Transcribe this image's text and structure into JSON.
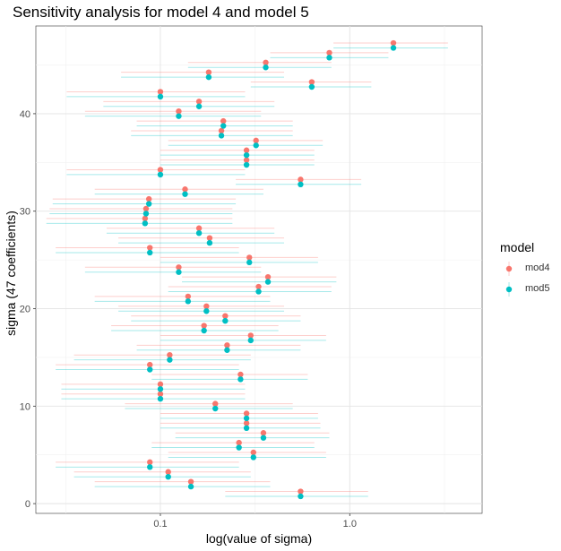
{
  "chart_data": {
    "type": "scatter",
    "title": "Sensitivity analysis for model 4 and model 5",
    "xlabel": "log(value of sigma)",
    "ylabel": "sigma (47 coefficients)",
    "x_scale": "log10",
    "xlim": [
      0.022,
      5
    ],
    "ylim": [
      -1,
      49
    ],
    "x_ticks": [
      0.1,
      1.0
    ],
    "x_tick_labels": [
      "0.1",
      "1.0"
    ],
    "y_ticks": [
      0,
      10,
      20,
      30,
      40
    ],
    "y_tick_labels": [
      "0",
      "10",
      "20",
      "30",
      "40"
    ],
    "grid": true,
    "legend": {
      "title": "model",
      "position": "right"
    },
    "colors": {
      "mod4": "#F8766D",
      "mod5": "#00BFC4"
    },
    "series": [
      {
        "name": "mod4",
        "points": [
          {
            "sigma": 1,
            "estimate": 0.55,
            "lower": 0.22,
            "upper": 1.25
          },
          {
            "sigma": 2,
            "estimate": 0.145,
            "lower": 0.045,
            "upper": 0.38
          },
          {
            "sigma": 3,
            "estimate": 0.11,
            "lower": 0.035,
            "upper": 0.3
          },
          {
            "sigma": 4,
            "estimate": 0.088,
            "lower": 0.028,
            "upper": 0.26
          },
          {
            "sigma": 5,
            "estimate": 0.31,
            "lower": 0.11,
            "upper": 0.75
          },
          {
            "sigma": 6,
            "estimate": 0.26,
            "lower": 0.09,
            "upper": 0.65
          },
          {
            "sigma": 7,
            "estimate": 0.35,
            "lower": 0.12,
            "upper": 0.78
          },
          {
            "sigma": 8,
            "estimate": 0.285,
            "lower": 0.1,
            "upper": 0.7
          },
          {
            "sigma": 9,
            "estimate": 0.285,
            "lower": 0.1,
            "upper": 0.68
          },
          {
            "sigma": 10,
            "estimate": 0.195,
            "lower": 0.065,
            "upper": 0.5
          },
          {
            "sigma": 11,
            "estimate": 0.1,
            "lower": 0.03,
            "upper": 0.28
          },
          {
            "sigma": 12,
            "estimate": 0.1,
            "lower": 0.03,
            "upper": 0.28
          },
          {
            "sigma": 13,
            "estimate": 0.265,
            "lower": 0.09,
            "upper": 0.6
          },
          {
            "sigma": 14,
            "estimate": 0.088,
            "lower": 0.028,
            "upper": 0.26
          },
          {
            "sigma": 15,
            "estimate": 0.112,
            "lower": 0.035,
            "upper": 0.3
          },
          {
            "sigma": 16,
            "estimate": 0.225,
            "lower": 0.075,
            "upper": 0.55
          },
          {
            "sigma": 17,
            "estimate": 0.3,
            "lower": 0.1,
            "upper": 0.75
          },
          {
            "sigma": 18,
            "estimate": 0.17,
            "lower": 0.055,
            "upper": 0.42
          },
          {
            "sigma": 19,
            "estimate": 0.22,
            "lower": 0.07,
            "upper": 0.55
          },
          {
            "sigma": 20,
            "estimate": 0.175,
            "lower": 0.06,
            "upper": 0.45
          },
          {
            "sigma": 21,
            "estimate": 0.14,
            "lower": 0.045,
            "upper": 0.38
          },
          {
            "sigma": 22,
            "estimate": 0.33,
            "lower": 0.11,
            "upper": 0.8
          },
          {
            "sigma": 23,
            "estimate": 0.37,
            "lower": 0.13,
            "upper": 0.85
          },
          {
            "sigma": 24,
            "estimate": 0.125,
            "lower": 0.04,
            "upper": 0.34
          },
          {
            "sigma": 25,
            "estimate": 0.295,
            "lower": 0.1,
            "upper": 0.68
          },
          {
            "sigma": 26,
            "estimate": 0.088,
            "lower": 0.028,
            "upper": 0.26
          },
          {
            "sigma": 27,
            "estimate": 0.182,
            "lower": 0.06,
            "upper": 0.45
          },
          {
            "sigma": 28,
            "estimate": 0.16,
            "lower": 0.052,
            "upper": 0.4
          },
          {
            "sigma": 29,
            "estimate": 0.083,
            "lower": 0.025,
            "upper": 0.24
          },
          {
            "sigma": 30,
            "estimate": 0.084,
            "lower": 0.026,
            "upper": 0.24
          },
          {
            "sigma": 31,
            "estimate": 0.087,
            "lower": 0.027,
            "upper": 0.25
          },
          {
            "sigma": 32,
            "estimate": 0.135,
            "lower": 0.045,
            "upper": 0.35
          },
          {
            "sigma": 33,
            "estimate": 0.55,
            "lower": 0.25,
            "upper": 1.15
          },
          {
            "sigma": 34,
            "estimate": 0.1,
            "lower": 0.032,
            "upper": 0.28
          },
          {
            "sigma": 35,
            "estimate": 0.285,
            "lower": 0.1,
            "upper": 0.65
          },
          {
            "sigma": 36,
            "estimate": 0.285,
            "lower": 0.1,
            "upper": 0.65
          },
          {
            "sigma": 37,
            "estimate": 0.32,
            "lower": 0.11,
            "upper": 0.72
          },
          {
            "sigma": 38,
            "estimate": 0.21,
            "lower": 0.07,
            "upper": 0.5
          },
          {
            "sigma": 39,
            "estimate": 0.215,
            "lower": 0.075,
            "upper": 0.5
          },
          {
            "sigma": 40,
            "estimate": 0.125,
            "lower": 0.04,
            "upper": 0.34
          },
          {
            "sigma": 41,
            "estimate": 0.16,
            "lower": 0.05,
            "upper": 0.4
          },
          {
            "sigma": 42,
            "estimate": 0.1,
            "lower": 0.032,
            "upper": 0.28
          },
          {
            "sigma": 43,
            "estimate": 0.63,
            "lower": 0.3,
            "upper": 1.3
          },
          {
            "sigma": 44,
            "estimate": 0.18,
            "lower": 0.062,
            "upper": 0.45
          },
          {
            "sigma": 45,
            "estimate": 0.36,
            "lower": 0.14,
            "upper": 0.8
          },
          {
            "sigma": 46,
            "estimate": 0.78,
            "lower": 0.38,
            "upper": 1.6
          },
          {
            "sigma": 47,
            "estimate": 1.7,
            "lower": 0.82,
            "upper": 3.3
          }
        ]
      },
      {
        "name": "mod5",
        "points": [
          {
            "sigma": 1,
            "estimate": 0.55,
            "lower": 0.22,
            "upper": 1.25
          },
          {
            "sigma": 2,
            "estimate": 0.145,
            "lower": 0.045,
            "upper": 0.38
          },
          {
            "sigma": 3,
            "estimate": 0.11,
            "lower": 0.035,
            "upper": 0.3
          },
          {
            "sigma": 4,
            "estimate": 0.088,
            "lower": 0.028,
            "upper": 0.26
          },
          {
            "sigma": 5,
            "estimate": 0.31,
            "lower": 0.11,
            "upper": 0.75
          },
          {
            "sigma": 6,
            "estimate": 0.26,
            "lower": 0.09,
            "upper": 0.65
          },
          {
            "sigma": 7,
            "estimate": 0.35,
            "lower": 0.12,
            "upper": 0.78
          },
          {
            "sigma": 8,
            "estimate": 0.285,
            "lower": 0.1,
            "upper": 0.7
          },
          {
            "sigma": 9,
            "estimate": 0.285,
            "lower": 0.1,
            "upper": 0.68
          },
          {
            "sigma": 10,
            "estimate": 0.195,
            "lower": 0.065,
            "upper": 0.5
          },
          {
            "sigma": 11,
            "estimate": 0.1,
            "lower": 0.03,
            "upper": 0.28
          },
          {
            "sigma": 12,
            "estimate": 0.1,
            "lower": 0.03,
            "upper": 0.28
          },
          {
            "sigma": 13,
            "estimate": 0.265,
            "lower": 0.09,
            "upper": 0.6
          },
          {
            "sigma": 14,
            "estimate": 0.088,
            "lower": 0.028,
            "upper": 0.26
          },
          {
            "sigma": 15,
            "estimate": 0.112,
            "lower": 0.035,
            "upper": 0.3
          },
          {
            "sigma": 16,
            "estimate": 0.225,
            "lower": 0.075,
            "upper": 0.55
          },
          {
            "sigma": 17,
            "estimate": 0.3,
            "lower": 0.1,
            "upper": 0.75
          },
          {
            "sigma": 18,
            "estimate": 0.17,
            "lower": 0.055,
            "upper": 0.42
          },
          {
            "sigma": 19,
            "estimate": 0.22,
            "lower": 0.07,
            "upper": 0.55
          },
          {
            "sigma": 20,
            "estimate": 0.175,
            "lower": 0.06,
            "upper": 0.45
          },
          {
            "sigma": 21,
            "estimate": 0.14,
            "lower": 0.045,
            "upper": 0.38
          },
          {
            "sigma": 22,
            "estimate": 0.33,
            "lower": 0.11,
            "upper": 0.8
          },
          {
            "sigma": 23,
            "estimate": 0.37,
            "lower": 0.13,
            "upper": 0.85
          },
          {
            "sigma": 24,
            "estimate": 0.125,
            "lower": 0.04,
            "upper": 0.34
          },
          {
            "sigma": 25,
            "estimate": 0.295,
            "lower": 0.1,
            "upper": 0.68
          },
          {
            "sigma": 26,
            "estimate": 0.088,
            "lower": 0.028,
            "upper": 0.26
          },
          {
            "sigma": 27,
            "estimate": 0.182,
            "lower": 0.06,
            "upper": 0.45
          },
          {
            "sigma": 28,
            "estimate": 0.16,
            "lower": 0.052,
            "upper": 0.4
          },
          {
            "sigma": 29,
            "estimate": 0.083,
            "lower": 0.025,
            "upper": 0.24
          },
          {
            "sigma": 30,
            "estimate": 0.084,
            "lower": 0.026,
            "upper": 0.24
          },
          {
            "sigma": 31,
            "estimate": 0.087,
            "lower": 0.027,
            "upper": 0.25
          },
          {
            "sigma": 32,
            "estimate": 0.135,
            "lower": 0.045,
            "upper": 0.35
          },
          {
            "sigma": 33,
            "estimate": 0.55,
            "lower": 0.25,
            "upper": 1.15
          },
          {
            "sigma": 34,
            "estimate": 0.1,
            "lower": 0.032,
            "upper": 0.28
          },
          {
            "sigma": 35,
            "estimate": 0.285,
            "lower": 0.1,
            "upper": 0.65
          },
          {
            "sigma": 36,
            "estimate": 0.285,
            "lower": 0.1,
            "upper": 0.65
          },
          {
            "sigma": 37,
            "estimate": 0.32,
            "lower": 0.11,
            "upper": 0.72
          },
          {
            "sigma": 38,
            "estimate": 0.21,
            "lower": 0.07,
            "upper": 0.5
          },
          {
            "sigma": 39,
            "estimate": 0.215,
            "lower": 0.075,
            "upper": 0.5
          },
          {
            "sigma": 40,
            "estimate": 0.125,
            "lower": 0.04,
            "upper": 0.34
          },
          {
            "sigma": 41,
            "estimate": 0.16,
            "lower": 0.05,
            "upper": 0.4
          },
          {
            "sigma": 42,
            "estimate": 0.1,
            "lower": 0.032,
            "upper": 0.28
          },
          {
            "sigma": 43,
            "estimate": 0.63,
            "lower": 0.3,
            "upper": 1.3
          },
          {
            "sigma": 44,
            "estimate": 0.18,
            "lower": 0.062,
            "upper": 0.45
          },
          {
            "sigma": 45,
            "estimate": 0.36,
            "lower": 0.14,
            "upper": 0.8
          },
          {
            "sigma": 46,
            "estimate": 0.78,
            "lower": 0.38,
            "upper": 1.6
          },
          {
            "sigma": 47,
            "estimate": 1.7,
            "lower": 0.82,
            "upper": 3.3
          }
        ]
      }
    ]
  }
}
